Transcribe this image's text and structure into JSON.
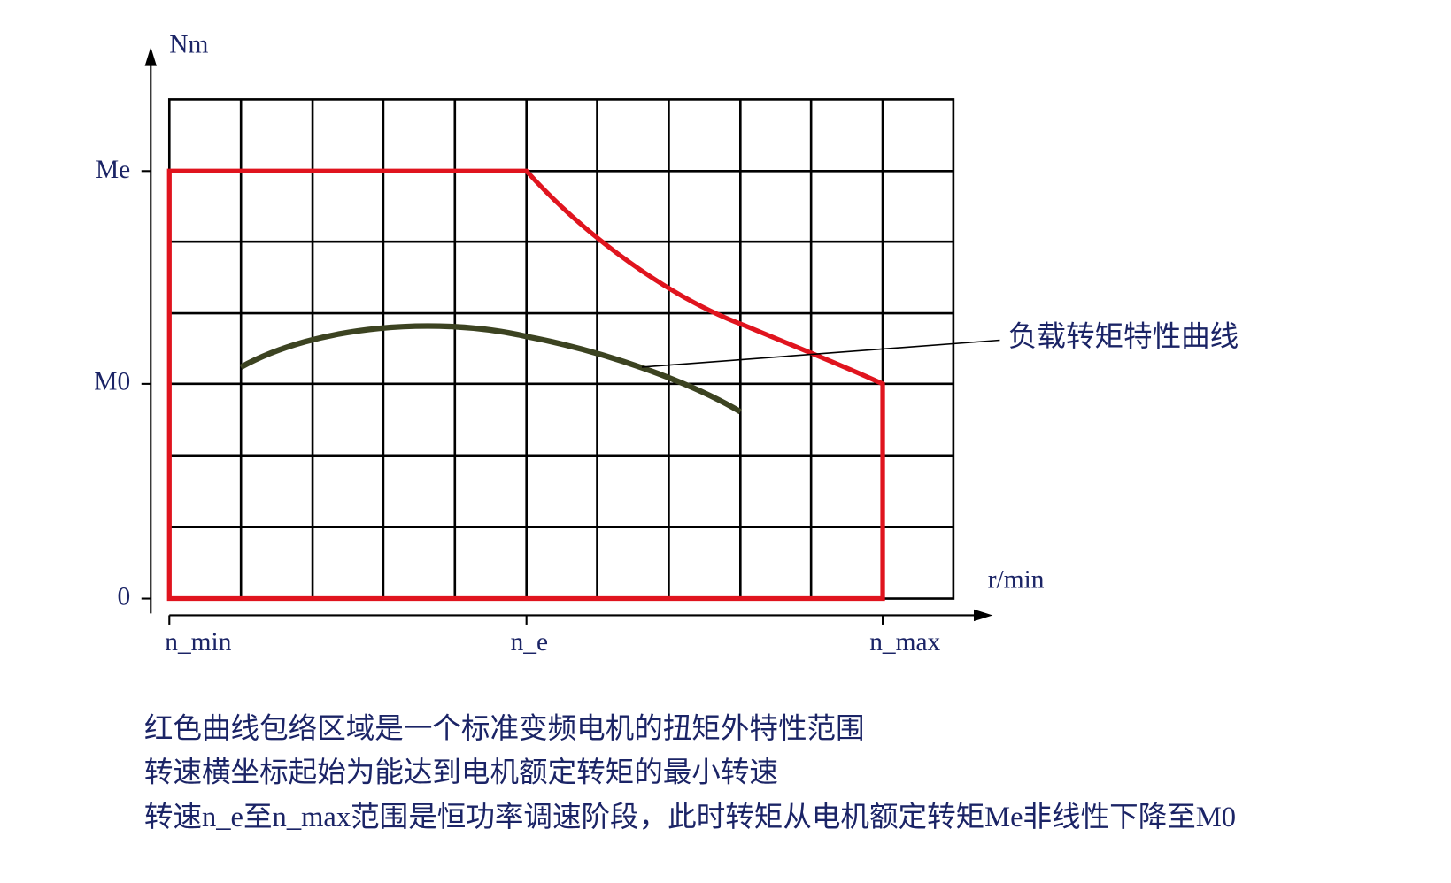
{
  "axis": {
    "y_label": "Nm",
    "x_label": "r/min",
    "y_ticks": [
      "Me",
      "M0",
      "0"
    ],
    "x_ticks": [
      "n_min",
      "n_e",
      "n_max"
    ]
  },
  "annotation": "负载转矩特性曲线",
  "captions": [
    "红色曲线包络区域是一个标准变频电机的扭矩外特性范围",
    "转速横坐标起始为能达到电机额定转矩的最小转速",
    "转速n_e至n_max范围是恒功率调速阶段，此时转矩从电机额定转矩Me非线性下降至M0"
  ]
}
